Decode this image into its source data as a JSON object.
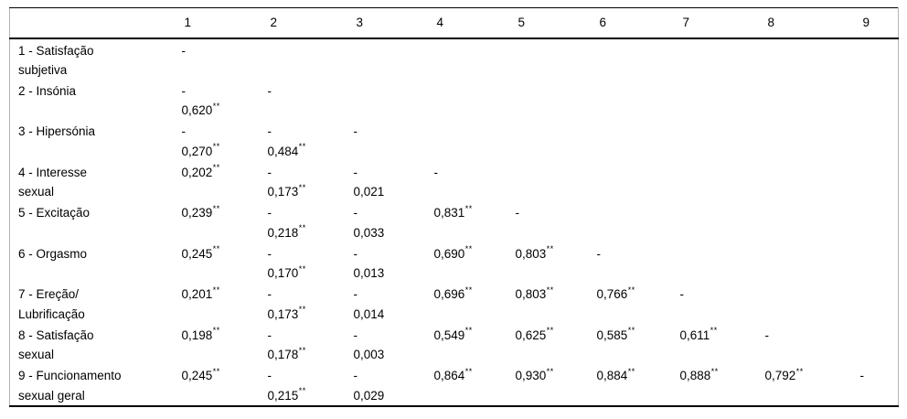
{
  "table": {
    "description": "Correlation matrix of sleep and sexual-functioning variables with significance markers",
    "significance_marker": "**",
    "decimal_style": "comma",
    "columns": [
      "1",
      "2",
      "3",
      "4",
      "5",
      "6",
      "7",
      "8",
      "9"
    ],
    "rows": [
      {
        "label_lines": [
          "1 - Satisfação",
          "subjetiva"
        ],
        "cells": [
          {
            "l1": "-"
          },
          {},
          {},
          {},
          {},
          {},
          {},
          {},
          {}
        ]
      },
      {
        "label_lines": [
          "2 - Insónia"
        ],
        "cells": [
          {
            "l1": "-",
            "l2": "0,620",
            "s2": "**"
          },
          {
            "l1": "-"
          },
          {},
          {},
          {},
          {},
          {},
          {},
          {}
        ]
      },
      {
        "label_lines": [
          "3 - Hipersónia"
        ],
        "cells": [
          {
            "l1": "-",
            "l2": "0,270",
            "s2": "**"
          },
          {
            "l1": "-",
            "l2": "0,484",
            "s2": "**"
          },
          {
            "l1": "-"
          },
          {},
          {},
          {},
          {},
          {},
          {}
        ]
      },
      {
        "label_lines": [
          "4 - Interesse",
          "sexual"
        ],
        "cells": [
          {
            "l1": "0,202",
            "s1": "**"
          },
          {
            "l1": "-",
            "l2": "0,173",
            "s2": "**"
          },
          {
            "l1": "-",
            "l2": "0,021"
          },
          {
            "l1": "-"
          },
          {},
          {},
          {},
          {},
          {}
        ]
      },
      {
        "label_lines": [
          "5 - Excitação"
        ],
        "cells": [
          {
            "l1": "0,239",
            "s1": "**"
          },
          {
            "l1": "-",
            "l2": "0,218",
            "s2": "**"
          },
          {
            "l1": "-",
            "l2": "0,033"
          },
          {
            "l1": "0,831",
            "s1": "**"
          },
          {
            "l1": "-"
          },
          {},
          {},
          {},
          {}
        ]
      },
      {
        "label_lines": [
          "6 - Orgasmo"
        ],
        "cells": [
          {
            "l1": "0,245",
            "s1": "**"
          },
          {
            "l1": "-",
            "l2": "0,170",
            "s2": "**"
          },
          {
            "l1": "-",
            "l2": "0,013"
          },
          {
            "l1": "0,690",
            "s1": "**"
          },
          {
            "l1": "0,803",
            "s1": "**"
          },
          {
            "l1": "-"
          },
          {},
          {},
          {}
        ]
      },
      {
        "label_lines": [
          "7 - Ereção/",
          "Lubrificação"
        ],
        "cells": [
          {
            "l1": "0,201",
            "s1": "**"
          },
          {
            "l1": "-",
            "l2": "0,173",
            "s2": "**"
          },
          {
            "l1": "-",
            "l2": "0,014"
          },
          {
            "l1": "0,696",
            "s1": "**"
          },
          {
            "l1": "0,803",
            "s1": "**"
          },
          {
            "l1": "0,766",
            "s1": "**"
          },
          {
            "l1": "-"
          },
          {},
          {}
        ]
      },
      {
        "label_lines": [
          "8 - Satisfação",
          "sexual"
        ],
        "cells": [
          {
            "l1": "0,198",
            "s1": "**"
          },
          {
            "l1": "-",
            "l2": "0,178",
            "s2": "**"
          },
          {
            "l1": "-",
            "l2": "0,003"
          },
          {
            "l1": "0,549",
            "s1": "**"
          },
          {
            "l1": "0,625",
            "s1": "**"
          },
          {
            "l1": "0,585",
            "s1": "**"
          },
          {
            "l1": "0,611",
            "s1": "**"
          },
          {
            "l1": "-"
          },
          {}
        ]
      },
      {
        "label_lines": [
          "9 - Funcionamento",
          "sexual geral"
        ],
        "cells": [
          {
            "l1": "0,245",
            "s1": "**"
          },
          {
            "l1": "-",
            "l2": "0,215",
            "s2": "**"
          },
          {
            "l1": "-",
            "l2": "0,029"
          },
          {
            "l1": "0,864",
            "s1": "**"
          },
          {
            "l1": "0,930",
            "s1": "**"
          },
          {
            "l1": "0,884",
            "s1": "**"
          },
          {
            "l1": "0,888",
            "s1": "**"
          },
          {
            "l1": "0,792",
            "s1": "**"
          },
          {
            "l1": "-"
          }
        ]
      }
    ]
  }
}
